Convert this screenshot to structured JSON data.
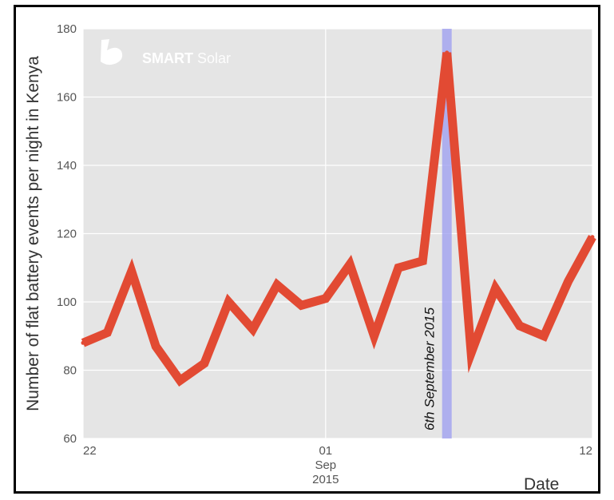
{
  "chart_data": {
    "type": "line",
    "title": "",
    "ylabel": "Number  of flat battery events per night in Kenya",
    "xlabel": "Date",
    "ylim": [
      60,
      180
    ],
    "yticks": [
      60,
      80,
      100,
      120,
      140,
      160,
      180
    ],
    "x_start": "2015-08-22",
    "x_end": "2015-09-12",
    "xticks": [
      {
        "date": "2015-08-22",
        "line1": "22",
        "line2": "",
        "line3": ""
      },
      {
        "date": "2015-09-01",
        "line1": "01",
        "line2": "Sep",
        "line3": "2015"
      },
      {
        "date": "2015-09-12",
        "line1": "12",
        "line2": "",
        "line3": ""
      }
    ],
    "x": [
      "2015-08-22",
      "2015-08-23",
      "2015-08-24",
      "2015-08-25",
      "2015-08-26",
      "2015-08-27",
      "2015-08-28",
      "2015-08-29",
      "2015-08-30",
      "2015-08-31",
      "2015-09-01",
      "2015-09-02",
      "2015-09-03",
      "2015-09-04",
      "2015-09-05",
      "2015-09-06",
      "2015-09-07",
      "2015-09-08",
      "2015-09-09",
      "2015-09-10",
      "2015-09-11",
      "2015-09-12"
    ],
    "values": [
      88,
      91,
      109,
      87,
      77,
      82,
      100,
      92,
      105,
      99,
      101,
      111,
      90,
      110,
      112,
      173,
      85,
      104,
      93,
      90,
      106,
      119
    ],
    "series_color": "#e24a33",
    "grid": true,
    "background": "#e5e5e5",
    "highlight": {
      "date": "2015-09-06",
      "label": "6th September 2015",
      "color": "#9b9cf0"
    }
  },
  "logo": {
    "bold": "SMART",
    "rest": " Solar"
  }
}
